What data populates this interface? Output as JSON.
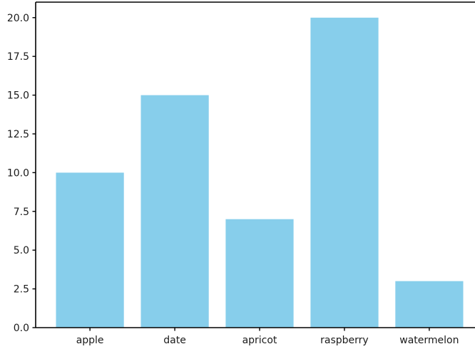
{
  "chart_data": {
    "type": "bar",
    "title": "",
    "xlabel": "",
    "ylabel": "",
    "categories": [
      "apple",
      "date",
      "apricot",
      "raspberry",
      "watermelon"
    ],
    "values": [
      10,
      15,
      7,
      20,
      3
    ],
    "ylim": [
      0,
      21
    ],
    "xlim": [
      -0.64,
      4.64
    ],
    "yticks": [
      0.0,
      2.5,
      5.0,
      7.5,
      10.0,
      12.5,
      15.0,
      17.5,
      20.0
    ],
    "ytick_labels": [
      "0.0",
      "2.5",
      "5.0",
      "7.5",
      "10.0",
      "12.5",
      "15.0",
      "17.5",
      "20.0"
    ],
    "bar_width_units": 0.8,
    "bar_color": "#87CEEB",
    "axis_color": "#000000",
    "text_color": "#1a1a1a",
    "grid": false,
    "legend": null
  }
}
